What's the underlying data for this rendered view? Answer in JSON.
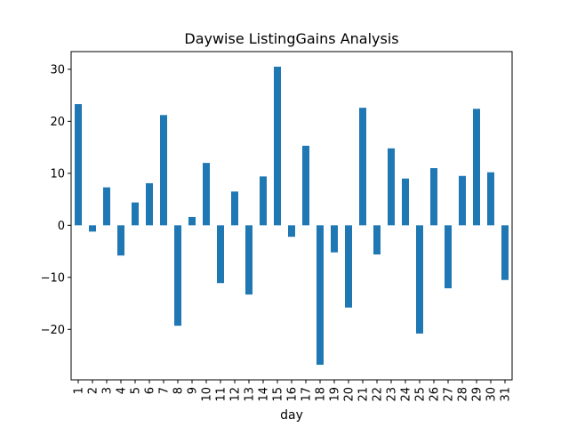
{
  "chart_data": {
    "type": "bar",
    "title": "Daywise ListingGains Analysis",
    "xlabel": "day",
    "ylabel": "",
    "categories": [
      "1",
      "2",
      "3",
      "4",
      "5",
      "6",
      "7",
      "8",
      "9",
      "10",
      "11",
      "12",
      "13",
      "14",
      "15",
      "16",
      "17",
      "18",
      "19",
      "20",
      "21",
      "22",
      "23",
      "24",
      "25",
      "26",
      "27",
      "28",
      "29",
      "30",
      "31"
    ],
    "values": [
      23.3,
      -1.2,
      7.3,
      -5.8,
      4.4,
      8.1,
      21.2,
      -19.3,
      1.6,
      12.0,
      -11.1,
      6.5,
      -13.3,
      9.4,
      30.5,
      -2.2,
      15.3,
      -26.8,
      -5.2,
      -15.8,
      22.6,
      -5.6,
      14.8,
      9.0,
      -20.8,
      11.0,
      -12.1,
      9.5,
      22.4,
      10.2,
      -10.5
    ],
    "yticks": [
      -20,
      -10,
      0,
      10,
      20,
      30
    ],
    "ylim": [
      -29.7,
      33.4
    ],
    "grid": false,
    "bar_color": "#1f77b4"
  }
}
